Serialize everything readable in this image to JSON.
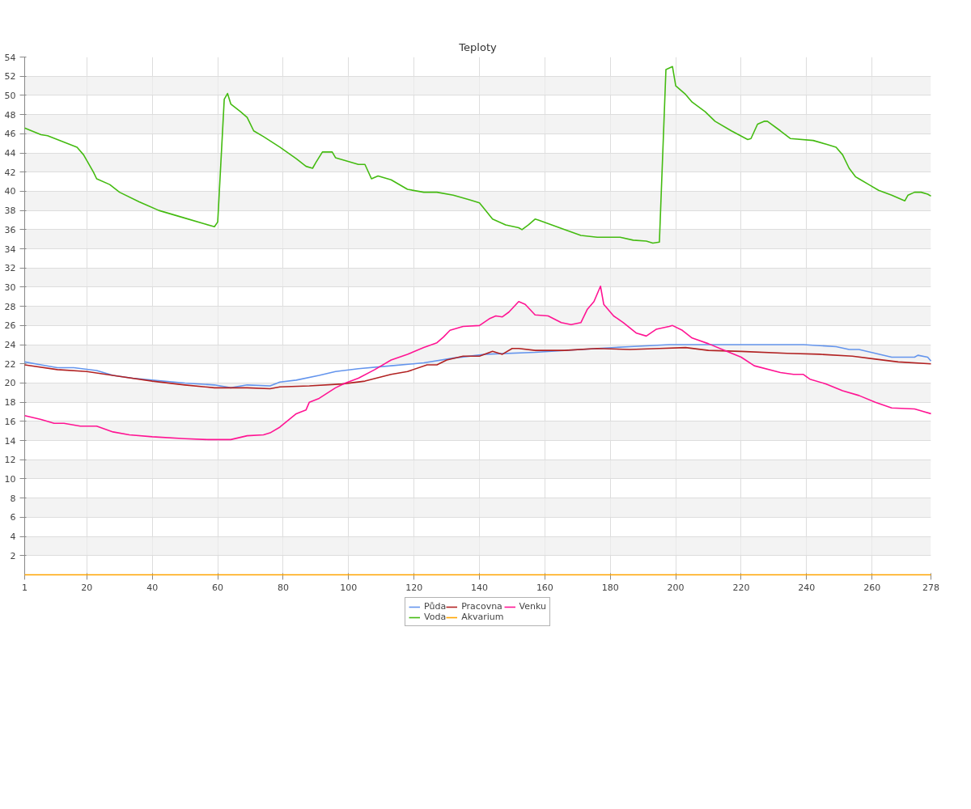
{
  "chart_data": {
    "type": "line",
    "title": "Teploty",
    "xlim": [
      1,
      278
    ],
    "xticks": [
      1,
      20,
      40,
      60,
      80,
      100,
      120,
      140,
      160,
      180,
      200,
      220,
      240,
      260,
      278
    ],
    "ylim": [
      0,
      54
    ],
    "yticks": [
      2,
      4,
      6,
      8,
      10,
      12,
      14,
      16,
      18,
      20,
      22,
      24,
      26,
      28,
      30,
      32,
      34,
      36,
      38,
      40,
      42,
      44,
      46,
      48,
      50,
      52,
      54
    ],
    "grid": true,
    "legend": "bottom",
    "marker": "none",
    "line_style": "solid",
    "series": [
      {
        "name": "Půda",
        "color": "#6495ed",
        "x": [
          1,
          6,
          11,
          16,
          23,
          28,
          34,
          40,
          50,
          59,
          64,
          69,
          76,
          79,
          84,
          91,
          96,
          103,
          113,
          123,
          132,
          142,
          157,
          171,
          186,
          198,
          239,
          244,
          249,
          253,
          256,
          261,
          266,
          273,
          274,
          277,
          278
        ],
        "values": [
          22.2,
          21.9,
          21.6,
          21.6,
          21.3,
          20.8,
          20.5,
          20.3,
          20.0,
          19.8,
          19.5,
          19.8,
          19.7,
          20.1,
          20.3,
          20.8,
          21.2,
          21.5,
          21.8,
          22.1,
          22.6,
          23.0,
          23.2,
          23.5,
          23.8,
          24.0,
          24.0,
          23.9,
          23.8,
          23.5,
          23.5,
          23.1,
          22.7,
          22.7,
          22.9,
          22.7,
          22.3
        ]
      },
      {
        "name": "Voda",
        "color": "#44bb11",
        "x": [
          1,
          6,
          8,
          11,
          17,
          19,
          22,
          23,
          27,
          30,
          36,
          42,
          50,
          56,
          59,
          60,
          62,
          63,
          64,
          67,
          69,
          71,
          74,
          79,
          84,
          87,
          89,
          90,
          92,
          95,
          96,
          99,
          103,
          105,
          107,
          109,
          113,
          118,
          123,
          127,
          132,
          137,
          140,
          144,
          148,
          152,
          153,
          155,
          157,
          158,
          166,
          171,
          176,
          183,
          187,
          191,
          193,
          195,
          197,
          199,
          200,
          203,
          205,
          209,
          212,
          217,
          222,
          223,
          225,
          227,
          228,
          232,
          235,
          242,
          246,
          249,
          251,
          253,
          255,
          256,
          259,
          262,
          266,
          268,
          270,
          271,
          273,
          275,
          277,
          278
        ],
        "values": [
          46.6,
          45.9,
          45.8,
          45.4,
          44.6,
          43.8,
          42.0,
          41.3,
          40.7,
          39.9,
          38.9,
          38.0,
          37.2,
          36.6,
          36.3,
          36.8,
          49.6,
          50.2,
          49.1,
          48.3,
          47.7,
          46.3,
          45.7,
          44.6,
          43.4,
          42.6,
          42.4,
          43.0,
          44.1,
          44.1,
          43.5,
          43.2,
          42.8,
          42.8,
          41.3,
          41.6,
          41.2,
          40.2,
          39.9,
          39.9,
          39.6,
          39.1,
          38.8,
          37.1,
          36.5,
          36.2,
          36.0,
          36.5,
          37.1,
          37.0,
          36.0,
          35.4,
          35.2,
          35.2,
          34.9,
          34.8,
          34.6,
          34.7,
          52.7,
          53.0,
          51.0,
          50.1,
          49.3,
          48.3,
          47.3,
          46.3,
          45.4,
          45.5,
          47.0,
          47.3,
          47.3,
          46.3,
          45.5,
          45.3,
          44.9,
          44.6,
          43.8,
          42.4,
          41.5,
          41.3,
          40.7,
          40.1,
          39.6,
          39.3,
          39.0,
          39.6,
          39.9,
          39.9,
          39.7,
          39.5
        ]
      },
      {
        "name": "Pracovna",
        "color": "#b22222",
        "x": [
          1,
          11,
          20,
          30,
          40,
          50,
          59,
          69,
          76,
          79,
          88,
          98,
          105,
          113,
          118,
          124,
          127,
          130,
          135,
          140,
          144,
          147,
          150,
          152,
          157,
          166,
          176,
          186,
          195,
          203,
          210,
          220,
          234,
          244,
          254,
          261,
          268,
          278
        ],
        "values": [
          21.9,
          21.4,
          21.2,
          20.7,
          20.2,
          19.8,
          19.5,
          19.5,
          19.4,
          19.6,
          19.7,
          19.9,
          20.2,
          20.9,
          21.2,
          21.9,
          21.9,
          22.4,
          22.8,
          22.8,
          23.3,
          23.0,
          23.6,
          23.6,
          23.4,
          23.4,
          23.6,
          23.5,
          23.6,
          23.7,
          23.4,
          23.3,
          23.1,
          23.0,
          22.8,
          22.5,
          22.2,
          22.0
        ]
      },
      {
        "name": "Akvarium",
        "color": "#ffa500",
        "x": [
          1,
          278
        ],
        "values": [
          0,
          0
        ]
      },
      {
        "name": "Venku",
        "color": "#ff1493",
        "x": [
          1,
          6,
          10,
          13,
          18,
          23,
          28,
          33,
          40,
          50,
          57,
          64,
          69,
          74,
          76,
          79,
          84,
          87,
          88,
          91,
          96,
          99,
          103,
          108,
          113,
          118,
          123,
          127,
          129,
          131,
          135,
          140,
          143,
          145,
          147,
          149,
          152,
          154,
          157,
          161,
          165,
          168,
          171,
          173,
          175,
          177,
          178,
          181,
          184,
          188,
          191,
          194,
          198,
          199,
          202,
          205,
          210,
          215,
          220,
          224,
          232,
          236,
          239,
          241,
          246,
          251,
          256,
          261,
          266,
          273,
          278
        ],
        "values": [
          16.6,
          16.2,
          15.8,
          15.8,
          15.5,
          15.5,
          14.9,
          14.6,
          14.4,
          14.2,
          14.1,
          14.1,
          14.5,
          14.6,
          14.8,
          15.4,
          16.8,
          17.2,
          18.0,
          18.4,
          19.5,
          20.0,
          20.5,
          21.4,
          22.4,
          23.0,
          23.7,
          24.2,
          24.8,
          25.5,
          25.9,
          26.0,
          26.7,
          27.0,
          26.9,
          27.4,
          28.5,
          28.2,
          27.1,
          27.0,
          26.3,
          26.1,
          26.3,
          27.7,
          28.5,
          30.1,
          28.2,
          27.0,
          26.3,
          25.2,
          24.9,
          25.6,
          25.9,
          26.0,
          25.5,
          24.7,
          24.1,
          23.4,
          22.7,
          21.8,
          21.1,
          20.9,
          20.9,
          20.4,
          19.9,
          19.2,
          18.7,
          18.0,
          17.4,
          17.3,
          16.8
        ]
      }
    ]
  }
}
